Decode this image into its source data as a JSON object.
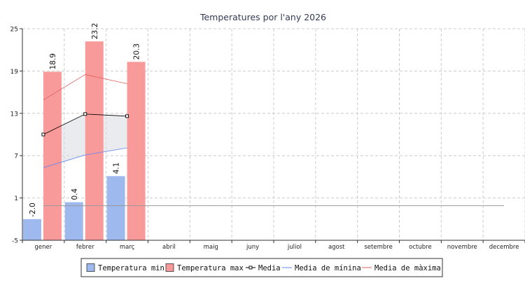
{
  "chart_data": {
    "type": "bar",
    "title": "Temperatures por l'any 2026",
    "xlabel": "",
    "ylabel": "",
    "categories": [
      "gener",
      "febrer",
      "març",
      "abril",
      "maig",
      "juny",
      "juliol",
      "agost",
      "setembre",
      "octubre",
      "novembre",
      "decembre"
    ],
    "ylim": [
      -5,
      25
    ],
    "yticks": [
      -5,
      1,
      7,
      13,
      19,
      25
    ],
    "grid": true,
    "legend_position": "bottom",
    "series": [
      {
        "name": "Temperatura min",
        "kind": "bar",
        "color": "#9db9ee",
        "values": [
          -2.0,
          0.4,
          4.1,
          null,
          null,
          null,
          null,
          null,
          null,
          null,
          null,
          null
        ],
        "labels": [
          "-2.0",
          "0.4",
          "4.1"
        ]
      },
      {
        "name": "Temperatura max",
        "kind": "bar",
        "color": "#f99a9a",
        "values": [
          18.9,
          23.2,
          20.3,
          null,
          null,
          null,
          null,
          null,
          null,
          null,
          null,
          null
        ],
        "labels": [
          "18.9",
          "23.2",
          "20.3"
        ]
      },
      {
        "name": "Media",
        "kind": "line-marker",
        "color": "#000000",
        "values": [
          10.0,
          12.9,
          12.6,
          null,
          null,
          null,
          null,
          null,
          null,
          null,
          null,
          null
        ]
      },
      {
        "name": "Media de mínina",
        "kind": "line",
        "color": "#6688ee",
        "values": [
          5.3,
          7.1,
          8.1,
          null,
          null,
          null,
          null,
          null,
          null,
          null,
          null,
          null
        ]
      },
      {
        "name": "Media de màxima",
        "kind": "line",
        "color": "#e06060",
        "values": [
          14.9,
          18.5,
          17.2,
          null,
          null,
          null,
          null,
          null,
          null,
          null,
          null,
          null
        ]
      }
    ],
    "reference_line": {
      "value": -0.1,
      "color": "#999999"
    }
  }
}
